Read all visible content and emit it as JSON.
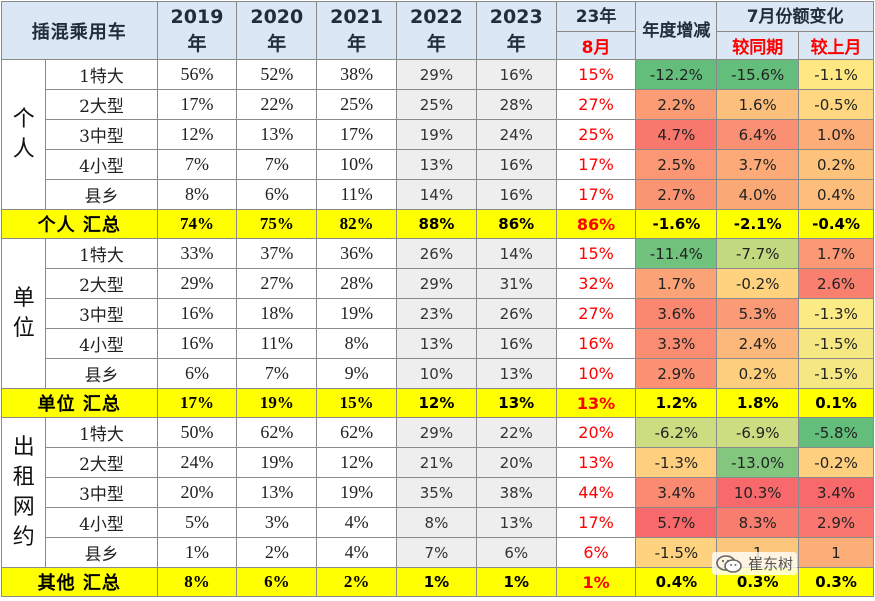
{
  "header": {
    "title": "插混乘用车",
    "years": [
      {
        "top": "2019",
        "bottom": "年"
      },
      {
        "top": "2020",
        "bottom": "年"
      },
      {
        "top": "2021",
        "bottom": "年"
      },
      {
        "top": "2022",
        "bottom": "年"
      },
      {
        "top": "2023",
        "bottom": "年"
      }
    ],
    "month_top": "23年",
    "month_bottom": "8月",
    "annual_change": "年度增减",
    "july_change": "7月份额变化",
    "yoy": "较同期",
    "mom": "较上月"
  },
  "groups": [
    {
      "label": "个人",
      "rows": [
        {
          "type": "1特大",
          "v2019": "56%",
          "v2020": "52%",
          "v2021": "38%",
          "v2022": "29%",
          "v2023": "16%",
          "aug": "15%",
          "annual": "-12.2%",
          "yoy": "-15.6%",
          "mom": "-1.1%"
        },
        {
          "type": "2大型",
          "v2019": "17%",
          "v2020": "22%",
          "v2021": "25%",
          "v2022": "25%",
          "v2023": "28%",
          "aug": "27%",
          "annual": "2.2%",
          "yoy": "1.6%",
          "mom": "-0.5%"
        },
        {
          "type": "3中型",
          "v2019": "12%",
          "v2020": "13%",
          "v2021": "17%",
          "v2022": "19%",
          "v2023": "24%",
          "aug": "25%",
          "annual": "4.7%",
          "yoy": "6.4%",
          "mom": "1.0%"
        },
        {
          "type": "4小型",
          "v2019": "7%",
          "v2020": "7%",
          "v2021": "10%",
          "v2022": "13%",
          "v2023": "16%",
          "aug": "17%",
          "annual": "2.5%",
          "yoy": "3.7%",
          "mom": "0.2%"
        },
        {
          "type": "县乡",
          "v2019": "8%",
          "v2020": "6%",
          "v2021": "11%",
          "v2022": "14%",
          "v2023": "16%",
          "aug": "17%",
          "annual": "2.7%",
          "yoy": "4.0%",
          "mom": "0.4%"
        }
      ],
      "summary": {
        "label": "个人 汇总",
        "v2019": "74%",
        "v2020": "75%",
        "v2021": "82%",
        "v2022": "88%",
        "v2023": "86%",
        "aug": "86%",
        "annual": "-1.6%",
        "yoy": "-2.1%",
        "mom": "-0.4%"
      }
    },
    {
      "label": "单位",
      "rows": [
        {
          "type": "1特大",
          "v2019": "33%",
          "v2020": "37%",
          "v2021": "36%",
          "v2022": "26%",
          "v2023": "14%",
          "aug": "15%",
          "annual": "-11.4%",
          "yoy": "-7.7%",
          "mom": "1.7%"
        },
        {
          "type": "2大型",
          "v2019": "29%",
          "v2020": "27%",
          "v2021": "28%",
          "v2022": "29%",
          "v2023": "31%",
          "aug": "32%",
          "annual": "1.7%",
          "yoy": "-0.2%",
          "mom": "2.6%"
        },
        {
          "type": "3中型",
          "v2019": "16%",
          "v2020": "18%",
          "v2021": "19%",
          "v2022": "23%",
          "v2023": "26%",
          "aug": "27%",
          "annual": "3.6%",
          "yoy": "5.3%",
          "mom": "-1.3%"
        },
        {
          "type": "4小型",
          "v2019": "16%",
          "v2020": "11%",
          "v2021": "8%",
          "v2022": "13%",
          "v2023": "16%",
          "aug": "16%",
          "annual": "3.3%",
          "yoy": "2.4%",
          "mom": "-1.5%"
        },
        {
          "type": "县乡",
          "v2019": "6%",
          "v2020": "7%",
          "v2021": "9%",
          "v2022": "10%",
          "v2023": "13%",
          "aug": "10%",
          "annual": "2.9%",
          "yoy": "0.2%",
          "mom": "-1.5%"
        }
      ],
      "summary": {
        "label": "单位 汇总",
        "v2019": "17%",
        "v2020": "19%",
        "v2021": "15%",
        "v2022": "12%",
        "v2023": "13%",
        "aug": "13%",
        "annual": "1.2%",
        "yoy": "1.8%",
        "mom": "0.1%"
      }
    },
    {
      "label": "出租网约",
      "rows": [
        {
          "type": "1特大",
          "v2019": "50%",
          "v2020": "62%",
          "v2021": "62%",
          "v2022": "29%",
          "v2023": "22%",
          "aug": "20%",
          "annual": "-6.2%",
          "yoy": "-6.9%",
          "mom": "-5.8%"
        },
        {
          "type": "2大型",
          "v2019": "24%",
          "v2020": "19%",
          "v2021": "12%",
          "v2022": "21%",
          "v2023": "20%",
          "aug": "13%",
          "annual": "-1.3%",
          "yoy": "-13.0%",
          "mom": "-0.2%"
        },
        {
          "type": "3中型",
          "v2019": "20%",
          "v2020": "13%",
          "v2021": "19%",
          "v2022": "35%",
          "v2023": "38%",
          "aug": "44%",
          "annual": "3.4%",
          "yoy": "10.3%",
          "mom": "3.4%"
        },
        {
          "type": "4小型",
          "v2019": "5%",
          "v2020": "3%",
          "v2021": "4%",
          "v2022": "8%",
          "v2023": "13%",
          "aug": "17%",
          "annual": "5.7%",
          "yoy": "8.3%",
          "mom": "2.9%"
        },
        {
          "type": "县乡",
          "v2019": "1%",
          "v2020": "2%",
          "v2021": "4%",
          "v2022": "7%",
          "v2023": "6%",
          "aug": "6%",
          "annual": "-1.5%",
          "yoy": "1",
          "mom": "1"
        }
      ],
      "summary": {
        "label": "其他 汇总",
        "v2019": "8%",
        "v2020": "6%",
        "v2021": "2%",
        "v2022": "1%",
        "v2023": "1%",
        "aug": "1%",
        "annual": "0.4%",
        "yoy": "0.3%",
        "mom": "0.3%"
      }
    }
  ],
  "colors": {
    "header_bg": "#dbe7f4",
    "summary_bg": "#ffff00",
    "accent_red": "#ff0000",
    "heat_green": "#63be7b",
    "heat_yellow": "#ffeb84",
    "heat_red": "#f8696b"
  },
  "heat_scale": {
    "annual": [
      -12.2,
      5.7
    ],
    "yoy": [
      -15.6,
      10.3
    ],
    "mom": [
      -5.8,
      3.4
    ]
  },
  "watermark": {
    "icon": "wechat-icon",
    "text": "崔东树"
  }
}
